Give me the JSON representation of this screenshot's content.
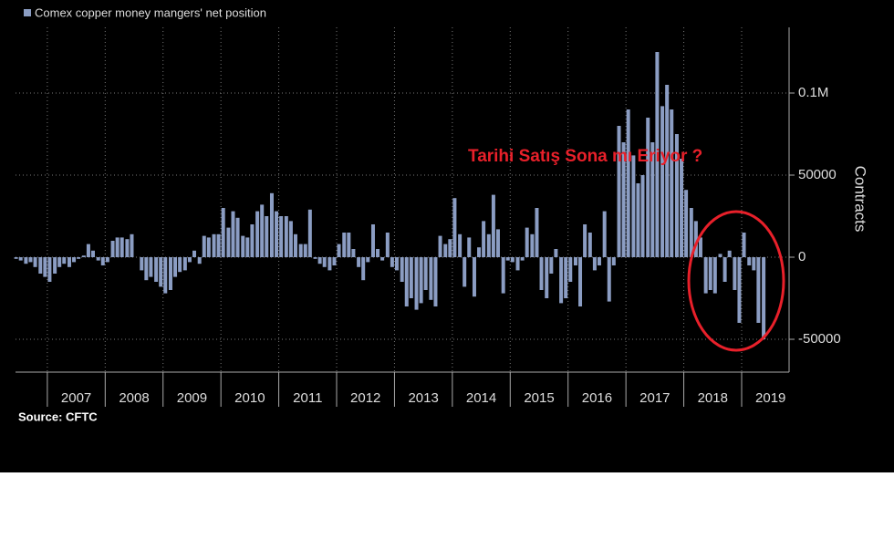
{
  "chart_data": {
    "type": "bar",
    "source": "Source: CFTC",
    "annotation": "Tarihi Satış Sona mı Eriyor ?",
    "y_label": "Contracts",
    "x": [
      2006.46,
      2006.54,
      2006.63,
      2006.71,
      2006.79,
      2006.88,
      2006.96,
      2007.04,
      2007.13,
      2007.21,
      2007.29,
      2007.38,
      2007.46,
      2007.54,
      2007.63,
      2007.71,
      2007.79,
      2007.88,
      2007.96,
      2008.04,
      2008.13,
      2008.21,
      2008.29,
      2008.38,
      2008.46,
      2008.54,
      2008.63,
      2008.71,
      2008.79,
      2008.88,
      2008.96,
      2009.04,
      2009.13,
      2009.21,
      2009.29,
      2009.38,
      2009.46,
      2009.54,
      2009.63,
      2009.71,
      2009.79,
      2009.88,
      2009.96,
      2010.04,
      2010.13,
      2010.21,
      2010.29,
      2010.38,
      2010.46,
      2010.54,
      2010.63,
      2010.71,
      2010.79,
      2010.88,
      2010.96,
      2011.04,
      2011.13,
      2011.21,
      2011.29,
      2011.38,
      2011.46,
      2011.54,
      2011.63,
      2011.71,
      2011.79,
      2011.88,
      2011.96,
      2012.04,
      2012.13,
      2012.21,
      2012.29,
      2012.38,
      2012.46,
      2012.54,
      2012.63,
      2012.71,
      2012.79,
      2012.88,
      2012.96,
      2013.04,
      2013.13,
      2013.21,
      2013.29,
      2013.38,
      2013.46,
      2013.54,
      2013.63,
      2013.71,
      2013.79,
      2013.88,
      2013.96,
      2014.04,
      2014.13,
      2014.21,
      2014.29,
      2014.38,
      2014.46,
      2014.54,
      2014.63,
      2014.71,
      2014.79,
      2014.88,
      2014.96,
      2015.04,
      2015.13,
      2015.21,
      2015.29,
      2015.38,
      2015.46,
      2015.54,
      2015.63,
      2015.71,
      2015.79,
      2015.88,
      2015.96,
      2016.04,
      2016.13,
      2016.21,
      2016.29,
      2016.38,
      2016.46,
      2016.54,
      2016.63,
      2016.71,
      2016.79,
      2016.88,
      2016.96,
      2017.04,
      2017.13,
      2017.21,
      2017.29,
      2017.38,
      2017.46,
      2017.54,
      2017.63,
      2017.71,
      2017.79,
      2017.88,
      2017.96,
      2018.04,
      2018.13,
      2018.21,
      2018.29,
      2018.38,
      2018.46,
      2018.54,
      2018.63,
      2018.71,
      2018.79,
      2018.88,
      2018.96,
      2019.04,
      2019.13,
      2019.21,
      2019.29,
      2019.38
    ],
    "series": [
      {
        "name": "Comex copper money mangers' net position",
        "color": "#8b9dc3",
        "values": [
          -1000,
          -2000,
          -4000,
          -3000,
          -6000,
          -10000,
          -12000,
          -15000,
          -10000,
          -6000,
          -4000,
          -6000,
          -3000,
          -1000,
          1000,
          8000,
          4000,
          -2000,
          -5000,
          -3000,
          10000,
          12000,
          12000,
          11000,
          14000,
          0,
          -8000,
          -14000,
          -12000,
          -15000,
          -18000,
          -22000,
          -20000,
          -12000,
          -9000,
          -8000,
          -3000,
          4000,
          -4000,
          13000,
          12000,
          14000,
          14000,
          30000,
          18000,
          28000,
          24000,
          13000,
          12000,
          20000,
          28000,
          32000,
          25000,
          39000,
          28000,
          25000,
          25000,
          22000,
          14000,
          8000,
          8000,
          29000,
          -1000,
          -4000,
          -6000,
          -8000,
          -5000,
          8000,
          15000,
          15000,
          5000,
          -6000,
          -14000,
          -3000,
          20000,
          5000,
          -2000,
          15000,
          -6000,
          -8000,
          -15000,
          -30000,
          -25000,
          -32000,
          -28000,
          -20000,
          -26000,
          -30000,
          13000,
          8000,
          11000,
          36000,
          14000,
          -18000,
          12000,
          -24000,
          6000,
          22000,
          14000,
          38000,
          17000,
          -22000,
          -2000,
          -3000,
          -8000,
          -2000,
          18000,
          14000,
          30000,
          -20000,
          -25000,
          -10000,
          5000,
          -28000,
          -25000,
          -15000,
          -5000,
          -30000,
          20000,
          15000,
          -8000,
          -5000,
          28000,
          -27000,
          -5000,
          80000,
          70000,
          90000,
          62000,
          45000,
          50000,
          85000,
          70000,
          125000,
          92000,
          105000,
          90000,
          75000,
          60000,
          41000,
          30000,
          22000,
          12000,
          -22000,
          -20000,
          -22000,
          2000,
          -15000,
          4000,
          -20000,
          -40000,
          15000,
          -5000,
          -8000,
          -40000,
          -50000
        ]
      }
    ],
    "xlim": [
      2006.45,
      2019.82
    ],
    "xticks": [
      2007,
      2008,
      2009,
      2010,
      2011,
      2012,
      2013,
      2014,
      2015,
      2016,
      2017,
      2018,
      2019
    ],
    "ylim": [
      -70000,
      140000
    ],
    "yticks": [
      -50000,
      0,
      50000,
      {
        "value": 100000,
        "label": "0.1M"
      }
    ],
    "grid": true
  }
}
